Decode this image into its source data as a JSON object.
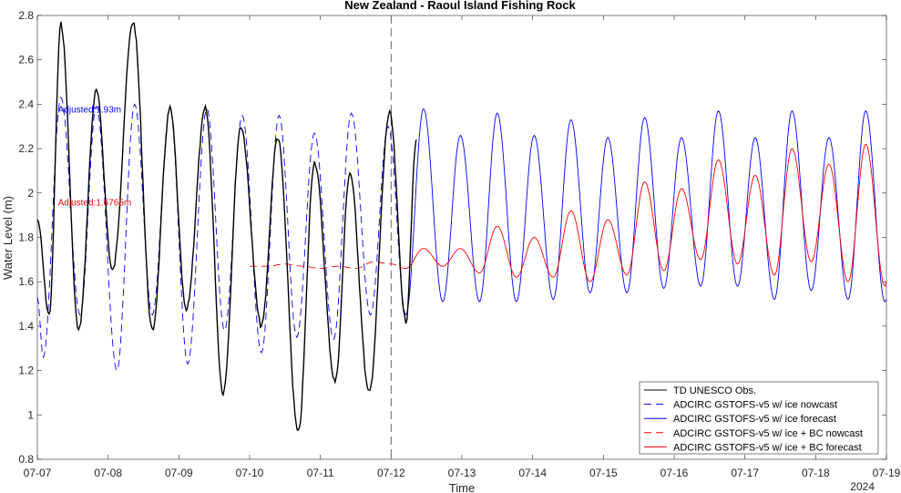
{
  "chart_data": {
    "type": "line",
    "title": "New Zealand - Raoul Island Fishing Rock",
    "xlabel": "Time",
    "ylabel": "Water Level (m)",
    "year_label": "2024",
    "x_ticks": [
      "07-07",
      "07-08",
      "07-09",
      "07-10",
      "07-11",
      "07-12",
      "07-13",
      "07-14",
      "07-15",
      "07-16",
      "07-17",
      "07-18",
      "07-19"
    ],
    "xlim": [
      "2024-07-07 00:00",
      "2024-07-19 00:00"
    ],
    "ylim": [
      0.8,
      2.8
    ],
    "y_ticks": [
      "0.8",
      "1",
      "1.2",
      "1.4",
      "1.6",
      "1.8",
      "2",
      "2.2",
      "2.4",
      "2.6",
      "2.8"
    ],
    "grid": false,
    "legend_position": "bottom-right",
    "nowcast_forecast_divider": "2024-07-12 00:00",
    "annotations": [
      {
        "text": "Adjusted:1.93m",
        "color": "#0000ff",
        "x": "2024-07-07 07:00",
        "y": 2.38
      },
      {
        "text": "Adjusted:1.6765m",
        "color": "#ff0000",
        "x": "2024-07-07 07:00",
        "y": 1.96
      }
    ],
    "series": [
      {
        "name": "TD UNESCO Obs.",
        "color": "#000000",
        "style": "solid",
        "points": [
          [
            "2024-07-07 00:00",
            1.88
          ],
          [
            "2024-07-07 04:00",
            1.45
          ],
          [
            "2024-07-07 08:00",
            2.76
          ],
          [
            "2024-07-07 14:00",
            1.38
          ],
          [
            "2024-07-07 20:00",
            2.46
          ],
          [
            "2024-07-08 01:30",
            1.65
          ],
          [
            "2024-07-08 08:30",
            2.77
          ],
          [
            "2024-07-08 15:00",
            1.38
          ],
          [
            "2024-07-08 21:00",
            2.38
          ],
          [
            "2024-07-09 02:30",
            1.47
          ],
          [
            "2024-07-09 09:00",
            2.38
          ],
          [
            "2024-07-09 15:00",
            1.1
          ],
          [
            "2024-07-09 21:00",
            2.3
          ],
          [
            "2024-07-10 04:00",
            1.4
          ],
          [
            "2024-07-10 09:30",
            2.25
          ],
          [
            "2024-07-10 16:30",
            0.92
          ],
          [
            "2024-07-10 22:00",
            2.14
          ],
          [
            "2024-07-11 05:00",
            1.15
          ],
          [
            "2024-07-11 10:00",
            2.09
          ],
          [
            "2024-07-11 16:30",
            1.1
          ],
          [
            "2024-07-11 23:30",
            2.36
          ],
          [
            "2024-07-12 05:00",
            1.42
          ],
          [
            "2024-07-12 08:30",
            2.23
          ]
        ]
      },
      {
        "name": "ADCIRC GSTOFS-v5 w/ ice nowcast",
        "color": "#0000ff",
        "style": "dashed",
        "points": [
          [
            "2024-07-07 00:00",
            1.53
          ],
          [
            "2024-07-07 02:00",
            1.26
          ],
          [
            "2024-07-07 08:00",
            2.43
          ],
          [
            "2024-07-07 14:30",
            1.45
          ],
          [
            "2024-07-07 20:00",
            2.39
          ],
          [
            "2024-07-08 03:00",
            1.2
          ],
          [
            "2024-07-08 09:00",
            2.4
          ],
          [
            "2024-07-08 15:00",
            1.45
          ],
          [
            "2024-07-08 21:00",
            2.38
          ],
          [
            "2024-07-09 03:00",
            1.23
          ],
          [
            "2024-07-09 09:30",
            2.38
          ],
          [
            "2024-07-09 15:30",
            1.38
          ],
          [
            "2024-07-09 21:30",
            2.35
          ],
          [
            "2024-07-10 04:00",
            1.28
          ],
          [
            "2024-07-10 10:00",
            2.35
          ],
          [
            "2024-07-10 16:00",
            1.35
          ],
          [
            "2024-07-10 22:00",
            2.27
          ],
          [
            "2024-07-11 04:30",
            1.34
          ],
          [
            "2024-07-11 10:30",
            2.36
          ],
          [
            "2024-07-11 17:00",
            1.45
          ],
          [
            "2024-07-11 23:00",
            2.3
          ],
          [
            "2024-07-12 05:00",
            1.45
          ]
        ]
      },
      {
        "name": "ADCIRC GSTOFS-v5 w/ ice forecast",
        "color": "#0000ff",
        "style": "solid",
        "points": [
          [
            "2024-07-12 05:00",
            1.45
          ],
          [
            "2024-07-12 11:00",
            2.38
          ],
          [
            "2024-07-12 17:30",
            1.51
          ],
          [
            "2024-07-12 23:30",
            2.26
          ],
          [
            "2024-07-13 06:00",
            1.51
          ],
          [
            "2024-07-13 12:00",
            2.36
          ],
          [
            "2024-07-13 18:30",
            1.51
          ],
          [
            "2024-07-14 00:30",
            2.26
          ],
          [
            "2024-07-14 07:00",
            1.52
          ],
          [
            "2024-07-14 13:00",
            2.33
          ],
          [
            "2024-07-14 19:30",
            1.55
          ],
          [
            "2024-07-15 01:30",
            2.25
          ],
          [
            "2024-07-15 08:00",
            1.55
          ],
          [
            "2024-07-15 14:00",
            2.34
          ],
          [
            "2024-07-15 20:30",
            1.57
          ],
          [
            "2024-07-16 02:30",
            2.25
          ],
          [
            "2024-07-16 09:00",
            1.58
          ],
          [
            "2024-07-16 15:00",
            2.37
          ],
          [
            "2024-07-16 21:30",
            1.58
          ],
          [
            "2024-07-17 03:30",
            2.25
          ],
          [
            "2024-07-17 10:00",
            1.52
          ],
          [
            "2024-07-17 16:00",
            2.37
          ],
          [
            "2024-07-17 22:30",
            1.56
          ],
          [
            "2024-07-18 04:30",
            2.25
          ],
          [
            "2024-07-18 11:00",
            1.52
          ],
          [
            "2024-07-18 17:00",
            2.37
          ],
          [
            "2024-07-18 23:30",
            1.51
          ],
          [
            "2024-07-19 00:00",
            1.52
          ]
        ]
      },
      {
        "name": "ADCIRC GSTOFS-v5 w/ ice + BC nowcast",
        "color": "#ff0000",
        "style": "dashed",
        "points": [
          [
            "2024-07-10 00:00",
            1.67
          ],
          [
            "2024-07-10 06:00",
            1.67
          ],
          [
            "2024-07-10 12:00",
            1.68
          ],
          [
            "2024-07-10 18:00",
            1.67
          ],
          [
            "2024-07-11 00:00",
            1.66
          ],
          [
            "2024-07-11 06:00",
            1.67
          ],
          [
            "2024-07-11 12:00",
            1.66
          ],
          [
            "2024-07-11 18:00",
            1.69
          ],
          [
            "2024-07-12 00:00",
            1.68
          ],
          [
            "2024-07-12 05:00",
            1.66
          ]
        ]
      },
      {
        "name": "ADCIRC GSTOFS-v5 w/ ice + BC forecast",
        "color": "#ff0000",
        "style": "solid",
        "points": [
          [
            "2024-07-12 05:00",
            1.66
          ],
          [
            "2024-07-12 11:00",
            1.75
          ],
          [
            "2024-07-12 17:30",
            1.67
          ],
          [
            "2024-07-12 23:30",
            1.75
          ],
          [
            "2024-07-13 06:00",
            1.64
          ],
          [
            "2024-07-13 12:00",
            1.85
          ],
          [
            "2024-07-13 18:30",
            1.62
          ],
          [
            "2024-07-14 00:30",
            1.8
          ],
          [
            "2024-07-14 07:00",
            1.62
          ],
          [
            "2024-07-14 13:00",
            1.92
          ],
          [
            "2024-07-14 19:30",
            1.6
          ],
          [
            "2024-07-15 01:30",
            1.88
          ],
          [
            "2024-07-15 08:00",
            1.63
          ],
          [
            "2024-07-15 14:00",
            2.05
          ],
          [
            "2024-07-15 20:30",
            1.65
          ],
          [
            "2024-07-16 02:30",
            2.02
          ],
          [
            "2024-07-16 09:00",
            1.7
          ],
          [
            "2024-07-16 15:00",
            2.15
          ],
          [
            "2024-07-16 21:30",
            1.68
          ],
          [
            "2024-07-17 03:30",
            2.08
          ],
          [
            "2024-07-17 10:00",
            1.63
          ],
          [
            "2024-07-17 16:00",
            2.2
          ],
          [
            "2024-07-17 22:30",
            1.69
          ],
          [
            "2024-07-18 04:30",
            2.13
          ],
          [
            "2024-07-18 11:00",
            1.6
          ],
          [
            "2024-07-18 17:00",
            2.22
          ],
          [
            "2024-07-18 23:30",
            1.58
          ],
          [
            "2024-07-19 00:00",
            1.6
          ]
        ]
      }
    ]
  }
}
